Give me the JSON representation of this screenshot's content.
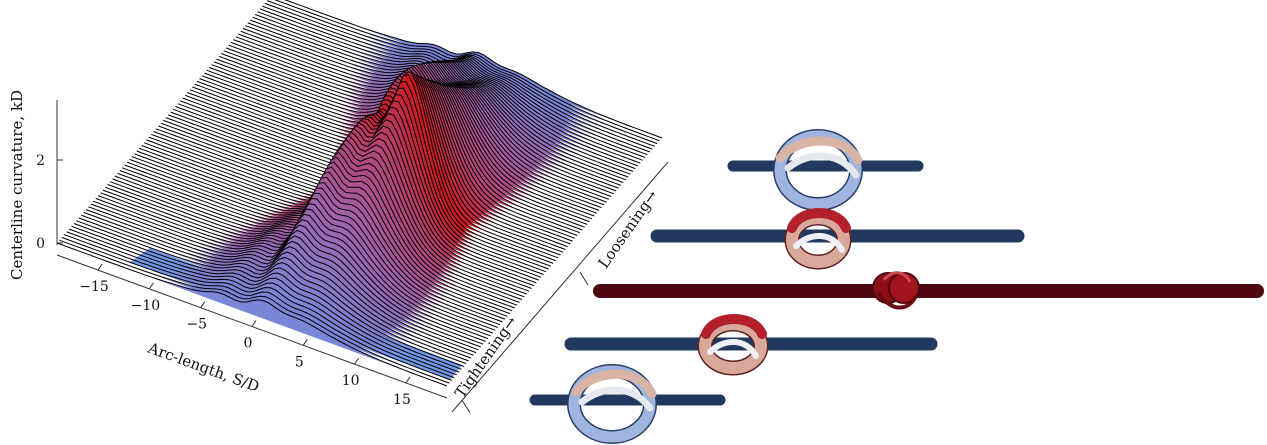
{
  "chart_data": {
    "type": "surface",
    "xlabel": "Arc-length, S/D",
    "ylabel": "Centerline curvature, kD",
    "x_ticks": [
      -15,
      -10,
      -5,
      0,
      5,
      10,
      15
    ],
    "z_ticks": [
      0,
      2
    ],
    "xlim": [
      -19,
      19
    ],
    "zlim": [
      0,
      3.3
    ],
    "direction_labels": {
      "tightening": "Tightening→",
      "loosening": "Loosening→"
    },
    "colormap": {
      "low": "#6b95e8",
      "mid": "#a45fa8",
      "high": "#d11313"
    },
    "n_profiles": 90,
    "peak_curvature": 3.3
  },
  "knot_panel": {
    "rope_states": [
      "loose",
      "partially tightened",
      "tight",
      "partially tightened",
      "loose"
    ],
    "colors": {
      "blue": "#5a7cc6",
      "light": "#c9d6ec",
      "red": "#9a1a24"
    }
  }
}
